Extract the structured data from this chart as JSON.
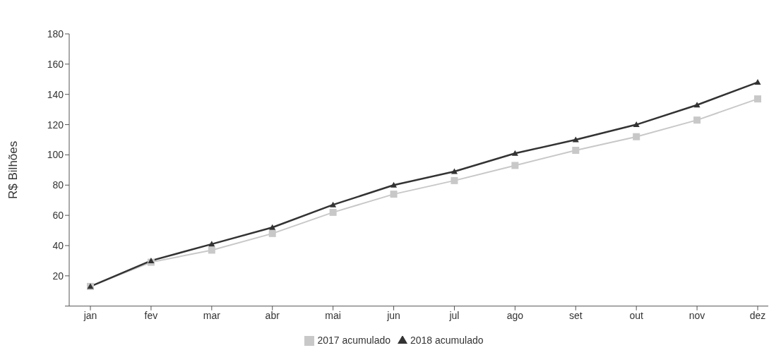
{
  "chart_data": {
    "type": "line",
    "ylabel": "R$ Bilhões",
    "categories": [
      "jan",
      "fev",
      "mar",
      "abr",
      "mai",
      "jun",
      "jul",
      "ago",
      "set",
      "out",
      "nov",
      "dez"
    ],
    "series": [
      {
        "name": "2017 acumulado",
        "color": "#c8c8c8",
        "marker": "square",
        "values": [
          13,
          29,
          37,
          48,
          62,
          74,
          83,
          93,
          103,
          112,
          123,
          137
        ]
      },
      {
        "name": "2018 acumulado",
        "color": "#333333",
        "marker": "triangle",
        "values": [
          13,
          30,
          41,
          52,
          67,
          80,
          89,
          101,
          110,
          120,
          133,
          148
        ]
      }
    ],
    "ylim": [
      0,
      180
    ],
    "yticks": [
      {
        "value": 0,
        "label": null
      },
      20,
      40,
      60,
      80,
      100,
      120,
      140,
      160,
      180
    ],
    "legend": "bottom"
  }
}
